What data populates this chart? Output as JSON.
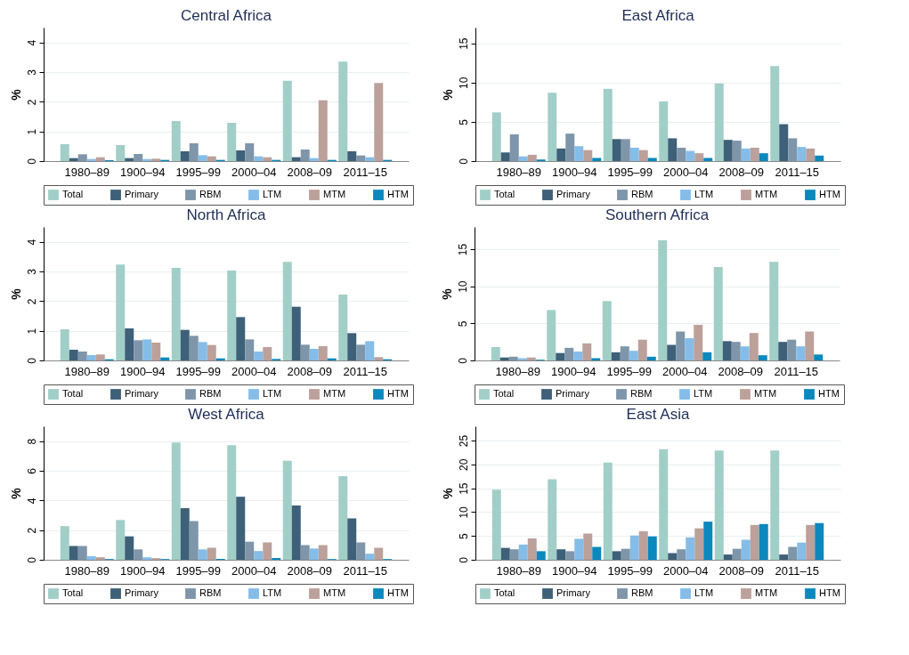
{
  "chart_data": [
    {
      "type": "bar",
      "title": "Central Africa",
      "ylabel": "%",
      "categories": [
        "1980–89",
        "1900–94",
        "1995–99",
        "2000–04",
        "2008–09",
        "2011–15"
      ],
      "ylim": [
        0,
        4.5
      ],
      "yticks": [
        0,
        1,
        2,
        3,
        4
      ],
      "grid": "y",
      "legend": "bottom",
      "series": [
        {
          "name": "Total",
          "color": "#a1cfc7",
          "values": [
            0.57,
            0.54,
            1.35,
            1.29,
            2.71,
            3.35
          ]
        },
        {
          "name": "Primary",
          "color": "#3e6078",
          "values": [
            0.1,
            0.1,
            0.33,
            0.36,
            0.13,
            0.33
          ]
        },
        {
          "name": "RBM",
          "color": "#7f95a9",
          "values": [
            0.23,
            0.24,
            0.6,
            0.6,
            0.39,
            0.19
          ]
        },
        {
          "name": "LTM",
          "color": "#85bde8",
          "values": [
            0.07,
            0.07,
            0.2,
            0.16,
            0.1,
            0.13
          ]
        },
        {
          "name": "MTM",
          "color": "#bca09a",
          "values": [
            0.13,
            0.08,
            0.16,
            0.13,
            2.05,
            2.63
          ]
        },
        {
          "name": "HTM",
          "color": "#0b88bd",
          "values": [
            0.03,
            0.04,
            0.04,
            0.04,
            0.04,
            0.04
          ]
        }
      ]
    },
    {
      "type": "bar",
      "title": "East Africa",
      "ylabel": "%",
      "categories": [
        "1980–89",
        "1900–94",
        "1995–99",
        "2000–04",
        "2008–09",
        "2011–15"
      ],
      "ylim": [
        0,
        17
      ],
      "yticks": [
        0,
        5,
        10,
        15
      ],
      "grid": "y",
      "legend": "bottom",
      "series": [
        {
          "name": "Total",
          "color": "#a1cfc7",
          "values": [
            6.2,
            8.7,
            9.2,
            7.6,
            9.9,
            12.1
          ]
        },
        {
          "name": "Primary",
          "color": "#3e6078",
          "values": [
            1.1,
            1.6,
            2.8,
            2.9,
            2.7,
            4.7
          ]
        },
        {
          "name": "RBM",
          "color": "#7f95a9",
          "values": [
            3.4,
            3.5,
            2.8,
            1.7,
            2.6,
            2.9
          ]
        },
        {
          "name": "LTM",
          "color": "#85bde8",
          "values": [
            0.6,
            1.9,
            1.7,
            1.3,
            1.6,
            1.8
          ]
        },
        {
          "name": "MTM",
          "color": "#bca09a",
          "values": [
            0.8,
            1.4,
            1.4,
            1.0,
            1.7,
            1.6
          ]
        },
        {
          "name": "HTM",
          "color": "#0b88bd",
          "values": [
            0.2,
            0.4,
            0.4,
            0.4,
            1.0,
            0.7
          ]
        }
      ]
    },
    {
      "type": "bar",
      "title": "North Africa",
      "ylabel": "%",
      "categories": [
        "1980–89",
        "1900–94",
        "1995–99",
        "2000–04",
        "2008–09",
        "2011–15"
      ],
      "ylim": [
        0,
        4.5
      ],
      "yticks": [
        0,
        1,
        2,
        3,
        4
      ],
      "grid": "y",
      "legend": "bottom",
      "series": [
        {
          "name": "Total",
          "color": "#a1cfc7",
          "values": [
            1.05,
            3.23,
            3.12,
            3.03,
            3.32,
            2.22
          ]
        },
        {
          "name": "Primary",
          "color": "#3e6078",
          "values": [
            0.36,
            1.08,
            1.03,
            1.46,
            1.81,
            0.92
          ]
        },
        {
          "name": "RBM",
          "color": "#7f95a9",
          "values": [
            0.3,
            0.68,
            0.83,
            0.71,
            0.53,
            0.53
          ]
        },
        {
          "name": "LTM",
          "color": "#85bde8",
          "values": [
            0.18,
            0.71,
            0.62,
            0.3,
            0.39,
            0.65
          ]
        },
        {
          "name": "MTM",
          "color": "#bca09a",
          "values": [
            0.2,
            0.6,
            0.52,
            0.45,
            0.48,
            0.11
          ]
        },
        {
          "name": "HTM",
          "color": "#0b88bd",
          "values": [
            0.04,
            0.1,
            0.07,
            0.05,
            0.07,
            0.04
          ]
        }
      ]
    },
    {
      "type": "bar",
      "title": "Southern Africa",
      "ylabel": "%",
      "categories": [
        "1980–89",
        "1900–94",
        "1995–99",
        "2000–04",
        "2008–09",
        "2011–15"
      ],
      "ylim": [
        0,
        18
      ],
      "yticks": [
        0,
        5,
        10,
        15
      ],
      "grid": "y",
      "legend": "bottom",
      "series": [
        {
          "name": "Total",
          "color": "#a1cfc7",
          "values": [
            1.8,
            6.8,
            8.0,
            16.2,
            12.6,
            13.3
          ]
        },
        {
          "name": "Primary",
          "color": "#3e6078",
          "values": [
            0.4,
            1.0,
            1.1,
            2.1,
            2.6,
            2.5
          ]
        },
        {
          "name": "RBM",
          "color": "#7f95a9",
          "values": [
            0.5,
            1.7,
            1.9,
            3.9,
            2.5,
            2.8
          ]
        },
        {
          "name": "LTM",
          "color": "#85bde8",
          "values": [
            0.3,
            1.2,
            1.3,
            3.0,
            1.9,
            1.9
          ]
        },
        {
          "name": "MTM",
          "color": "#bca09a",
          "values": [
            0.4,
            2.3,
            2.8,
            4.8,
            3.7,
            3.9
          ]
        },
        {
          "name": "HTM",
          "color": "#0b88bd",
          "values": [
            0.1,
            0.3,
            0.5,
            1.1,
            0.7,
            0.8
          ]
        }
      ]
    },
    {
      "type": "bar",
      "title": "West Africa",
      "ylabel": "%",
      "categories": [
        "1980–89",
        "1900–94",
        "1995–99",
        "2000–04",
        "2008–09",
        "2011–15"
      ],
      "ylim": [
        0,
        9
      ],
      "yticks": [
        0,
        2,
        4,
        6,
        8
      ],
      "grid": "y",
      "legend": "bottom",
      "series": [
        {
          "name": "Total",
          "color": "#a1cfc7",
          "values": [
            2.27,
            2.68,
            7.9,
            7.73,
            6.68,
            5.64
          ]
        },
        {
          "name": "Primary",
          "color": "#3e6078",
          "values": [
            0.93,
            1.58,
            3.48,
            4.25,
            3.66,
            2.79
          ]
        },
        {
          "name": "RBM",
          "color": "#7f95a9",
          "values": [
            0.93,
            0.7,
            2.61,
            1.22,
            0.99,
            1.17
          ]
        },
        {
          "name": "LTM",
          "color": "#85bde8",
          "values": [
            0.24,
            0.17,
            0.7,
            0.59,
            0.76,
            0.41
          ]
        },
        {
          "name": "MTM",
          "color": "#bca09a",
          "values": [
            0.17,
            0.11,
            0.81,
            1.17,
            0.99,
            0.81
          ]
        },
        {
          "name": "HTM",
          "color": "#0b88bd",
          "values": [
            0.05,
            0.05,
            0.06,
            0.12,
            0.05,
            0.05
          ]
        }
      ]
    },
    {
      "type": "bar",
      "title": "East Asia",
      "ylabel": "%",
      "categories": [
        "1980–89",
        "1900–94",
        "1995–99",
        "2000–04",
        "2008–09",
        "2011–15"
      ],
      "ylim": [
        0,
        28
      ],
      "yticks": [
        0,
        5,
        10,
        15,
        20,
        25
      ],
      "grid": "y",
      "legend": "bottom",
      "series": [
        {
          "name": "Total",
          "color": "#a1cfc7",
          "values": [
            14.7,
            16.9,
            20.4,
            23.2,
            22.9,
            22.9
          ]
        },
        {
          "name": "Primary",
          "color": "#3e6078",
          "values": [
            2.5,
            2.2,
            1.8,
            1.4,
            1.1,
            1.1
          ]
        },
        {
          "name": "RBM",
          "color": "#7f95a9",
          "values": [
            2.2,
            1.8,
            2.3,
            2.2,
            2.3,
            2.7
          ]
        },
        {
          "name": "LTM",
          "color": "#85bde8",
          "values": [
            3.2,
            4.4,
            5.1,
            4.7,
            4.2,
            3.6
          ]
        },
        {
          "name": "MTM",
          "color": "#bca09a",
          "values": [
            4.5,
            5.5,
            6.0,
            6.6,
            7.3,
            7.3
          ]
        },
        {
          "name": "HTM",
          "color": "#0b88bd",
          "values": [
            1.8,
            2.7,
            4.9,
            8.0,
            7.5,
            7.7
          ]
        }
      ]
    }
  ]
}
